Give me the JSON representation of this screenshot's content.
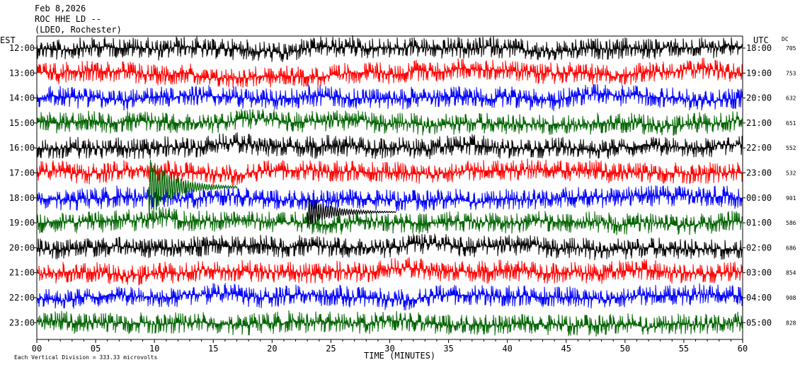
{
  "header": {
    "date": "Feb 8,2026",
    "station": "ROC HHE LD --",
    "network": "(LDEO, Rochester)"
  },
  "left_axis_title": "EST",
  "right_axis_title": "UTC",
  "dc_title": "DC",
  "footer": {
    "scale_text": "Each Vertical Division =  333.33 microvolts",
    "x_title": "TIME (MINUTES)"
  },
  "colors": {
    "trace_cycle": [
      "#000000",
      "#ff0000",
      "#0000ff",
      "#006400"
    ]
  },
  "chart_data": {
    "type": "line",
    "title": "Feb 8,2026",
    "xlabel": "TIME (MINUTES)",
    "xlim": [
      0,
      60
    ],
    "x_ticks": [
      "00",
      "05",
      "10",
      "15",
      "20",
      "25",
      "30",
      "35",
      "40",
      "45",
      "50",
      "55",
      "60"
    ],
    "rows": [
      {
        "est": "12:00",
        "utc": "18:00",
        "dc": "705"
      },
      {
        "est": "13:00",
        "utc": "19:00",
        "dc": "753"
      },
      {
        "est": "14:00",
        "utc": "20:00",
        "dc": "632"
      },
      {
        "est": "15:00",
        "utc": "21:00",
        "dc": "651"
      },
      {
        "est": "16:00",
        "utc": "22:00",
        "dc": "552"
      },
      {
        "est": "17:00",
        "utc": "23:00",
        "dc": "532"
      },
      {
        "est": "18:00",
        "utc": "00:00",
        "dc": "901"
      },
      {
        "est": "19:00",
        "utc": "01:00",
        "dc": "586"
      },
      {
        "est": "20:00",
        "utc": "02:00",
        "dc": "686"
      },
      {
        "est": "21:00",
        "utc": "03:00",
        "dc": "854"
      },
      {
        "est": "22:00",
        "utc": "04:00",
        "dc": "908"
      },
      {
        "est": "23:00",
        "utc": "05:00",
        "dc": "828"
      }
    ],
    "events": [
      {
        "row": 5,
        "minute": 9.5,
        "note": "large arrival"
      },
      {
        "row": 6,
        "minute": 23.0,
        "note": "secondary arrival"
      }
    ]
  }
}
